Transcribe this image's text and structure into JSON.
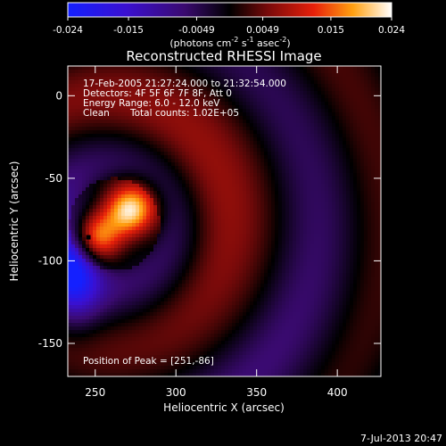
{
  "chart_data": {
    "type": "heatmap",
    "title": "Reconstructed RHESSI Image",
    "xlabel": "Heliocentric X (arcsec)",
    "ylabel": "Heliocentric Y (arcsec)",
    "xlim": [
      233,
      427
    ],
    "ylim": [
      -170,
      18
    ],
    "xticks": [
      250,
      300,
      350,
      400
    ],
    "yticks": [
      0,
      -50,
      -100,
      -150
    ],
    "colorbar": {
      "ticks": [
        "-0.024",
        "-0.015",
        "-0.0049",
        "0.0049",
        "0.015",
        "0.024"
      ],
      "tick_values": [
        -0.024,
        -0.015,
        -0.0049,
        0.0049,
        0.015,
        0.024
      ],
      "range": [
        -0.024,
        0.024
      ],
      "units_text": "(photons cm",
      "units_sup1": "-2",
      "units_mid": " s",
      "units_sup2": "-1",
      "units_mid2": " asec",
      "units_sup3": "-2",
      "units_close": ")"
    },
    "annotations": {
      "time": "17-Feb-2005 21:27:24.000 to 21:32:54.000",
      "detectors": "Detectors: 4F 5F 6F 7F 8F, Att 0",
      "energy": "Energy Range: 6.0 - 12.0 keV",
      "method": "Clean",
      "counts": "Total counts: 1.02E+05",
      "peak": "Position of Peak = [251,-86]"
    },
    "peak": [
      251,
      -86
    ],
    "sources": [
      {
        "x": 272,
        "y": -69,
        "amp": 0.024
      },
      {
        "x": 250,
        "y": -86,
        "amp": 0.023
      }
    ],
    "negative_region": {
      "x": 236,
      "y": -103,
      "amp": -0.022
    },
    "footer": "7-Jul-2013 20:47",
    "grid": false
  }
}
